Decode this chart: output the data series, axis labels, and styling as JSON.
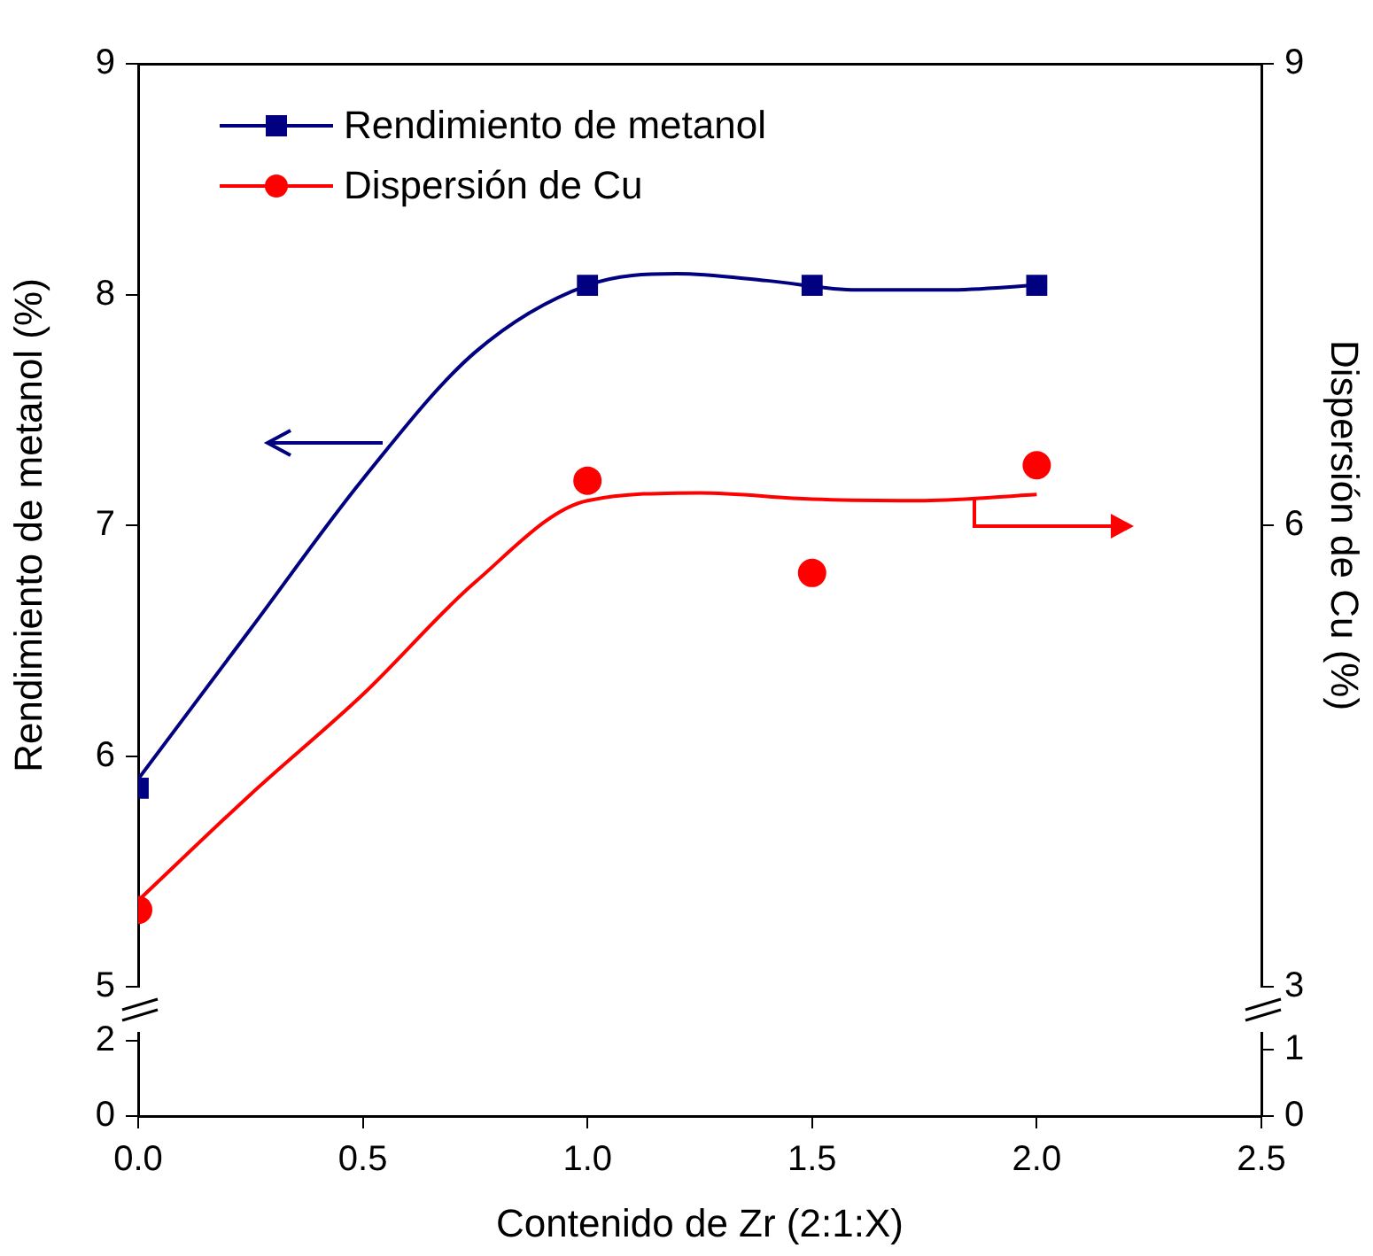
{
  "chart_data": [
    {
      "type": "scatter",
      "ylabel": "Rendimiento de metanol (%)",
      "y2label": "Dispersión de Cu (%)",
      "xlim": [
        0,
        2.5
      ],
      "ylim": [
        5,
        9
      ],
      "yticks": [
        5,
        6,
        7,
        8,
        9
      ],
      "y2lim": [
        3,
        9
      ],
      "y2ticks": [
        3,
        6,
        9
      ],
      "tick_labels": "y",
      "grid": false,
      "legend": "top left",
      "series": [
        {
          "name": "Rendimiento de metanol",
          "type": "scatter",
          "marker": "square",
          "color": "#000080",
          "x": [
            0,
            1,
            1.5,
            2
          ],
          "values": [
            5.86,
            8.04,
            8.04,
            8.04
          ]
        },
        {
          "name": "Dispersión de Cu",
          "type": "scatter",
          "marker": "circle",
          "color": "#ff0000",
          "axis": "y2",
          "x": [
            0,
            1,
            1.5,
            2
          ],
          "values": [
            3.5,
            6.29,
            5.69,
            6.39
          ]
        },
        {
          "type": "line",
          "marker": "none",
          "color": "#000080",
          "x": [
            0,
            0.25,
            0.5,
            0.75,
            1,
            1.2,
            1.4,
            1.6,
            1.8,
            2
          ],
          "values": [
            5.9,
            6.55,
            7.2,
            7.75,
            8.04,
            8.09,
            8.06,
            8.02,
            8.02,
            8.04
          ]
        },
        {
          "type": "line",
          "marker": "none",
          "color": "#ff0000",
          "axis": "y2",
          "x": [
            0,
            0.25,
            0.5,
            0.75,
            1,
            1.25,
            1.5,
            1.75,
            2
          ],
          "values": [
            3.56,
            4.25,
            4.9,
            5.63,
            6.16,
            6.21,
            6.17,
            6.16,
            6.2
          ]
        }
      ]
    },
    {
      "type": "scatter",
      "xlabel": "Contenido de Zr (2:1:X)",
      "xlim": [
        0,
        2.5
      ],
      "xticks": [
        {
          "value": 0,
          "label": "0.0"
        },
        {
          "value": 0.5,
          "label": "0.5"
        },
        {
          "value": 1,
          "label": "1.0"
        },
        {
          "value": 1.5,
          "label": "1.5"
        },
        {
          "value": 2,
          "label": "2.0"
        },
        {
          "value": 2.5,
          "label": "2.5"
        }
      ],
      "ylim": [
        0,
        2.2
      ],
      "yticks": [
        0,
        2
      ],
      "y2lim": [
        0,
        1.25
      ],
      "y2ticks": [
        0,
        1
      ],
      "grid": false
    }
  ]
}
